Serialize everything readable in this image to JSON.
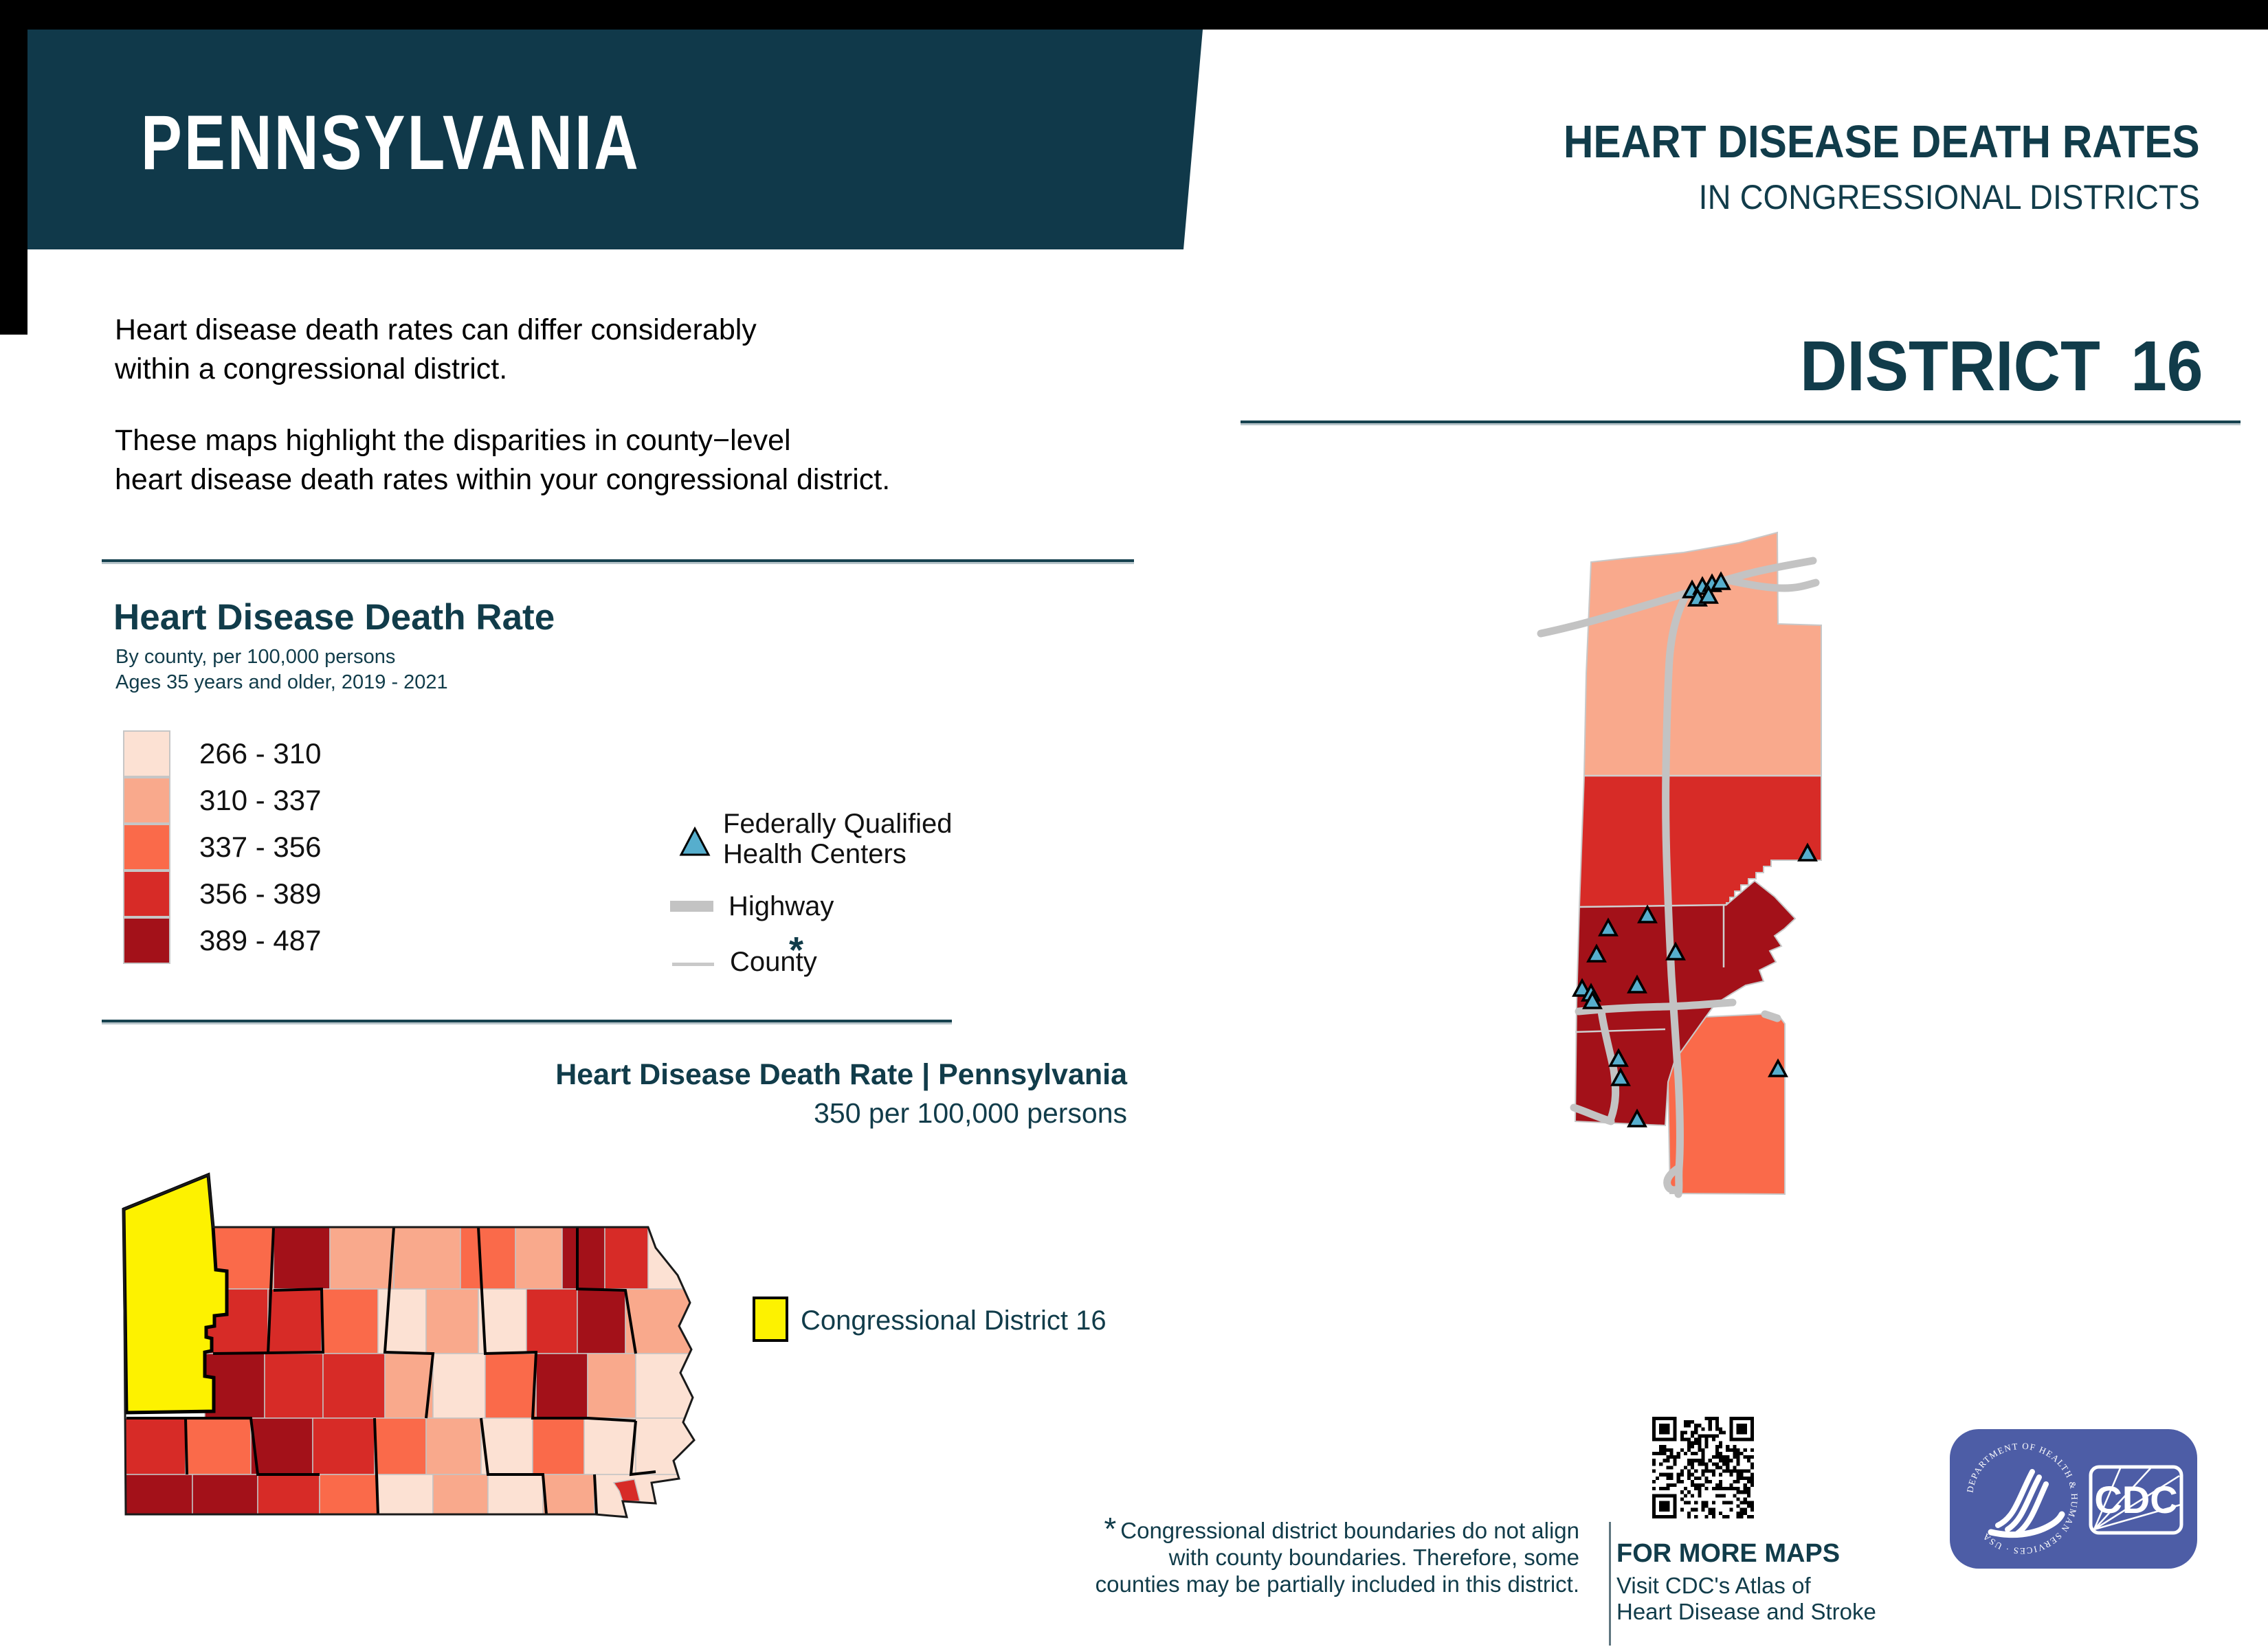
{
  "banner": {
    "state": "PENNSYLVANIA"
  },
  "header": {
    "title": "HEART DISEASE DEATH RATES",
    "subtitle": "IN CONGRESSIONAL DISTRICTS",
    "district_word": "DISTRICT",
    "district_number": "16"
  },
  "intro": {
    "p1_l1": "Heart disease death rates can differ considerably",
    "p1_l2": "within a congressional district.",
    "p2_l1": "These maps highlight the disparities in county−level",
    "p2_l2": "heart disease death rates within your congressional district."
  },
  "legend": {
    "title": "Heart Disease Death Rate",
    "subtitle1": "By county, per 100,000 persons",
    "subtitle2": "Ages 35 years and older, 2019 - 2021",
    "classes": [
      {
        "range": "266 - 310",
        "color": "#fce1d3"
      },
      {
        "range": "310 - 337",
        "color": "#f9a98c"
      },
      {
        "range": "337 - 356",
        "color": "#fa6a4a"
      },
      {
        "range": "356 - 389",
        "color": "#d72b27"
      },
      {
        "range": "389 - 487",
        "color": "#a31119"
      }
    ],
    "fqhc_line1": "Federally Qualified",
    "fqhc_line2": "Health Centers",
    "highway_label": "Highway",
    "county_label": "County",
    "county_note_mark": "*"
  },
  "state_section": {
    "heading": "Heart Disease Death Rate | Pennsylvania",
    "subheading": "350 per 100,000 persons",
    "district_legend_label": "Congressional District 16"
  },
  "footnote": {
    "mark": "*",
    "line1": "Congressional district boundaries do not align",
    "line2": "with county boundaries. Therefore, some",
    "line3": "counties may be partially included in this district."
  },
  "more_maps": {
    "title": "FOR MORE MAPS",
    "line1": "Visit CDC's Atlas of",
    "line2": "Heart Disease and Stroke"
  },
  "logo": {
    "hhs_ring_text": "DEPARTMENT OF HEALTH & HUMAN SERVICES · USA",
    "cdc_text": "CDC",
    "bg_color": "#4d5da6"
  },
  "palette": {
    "teal": "#113c4a",
    "class1": "#fce1d3",
    "class2": "#f9a98c",
    "class3": "#fa6a4a",
    "class4": "#d72b27",
    "class5": "#a31119",
    "district_yellow": "#fdf200",
    "fqhc_triangle": "#56aecd",
    "highway_gray": "#c3c3c3",
    "county_line_gray": "#cfcfcf",
    "map_outline_gray": "#c8c8c8"
  },
  "district_map": {
    "fqhc_points": [
      [
        232,
        100
      ],
      [
        247,
        95
      ],
      [
        261,
        91
      ],
      [
        274,
        88
      ],
      [
        240,
        112
      ],
      [
        256,
        108
      ],
      [
        400,
        483
      ],
      [
        167,
        573
      ],
      [
        110,
        592
      ],
      [
        93,
        630
      ],
      [
        208,
        627
      ],
      [
        152,
        675
      ],
      [
        72,
        680
      ],
      [
        85,
        687
      ],
      [
        87,
        698
      ],
      [
        125,
        782
      ],
      [
        128,
        810
      ],
      [
        152,
        870
      ],
      [
        357,
        797
      ]
    ]
  }
}
